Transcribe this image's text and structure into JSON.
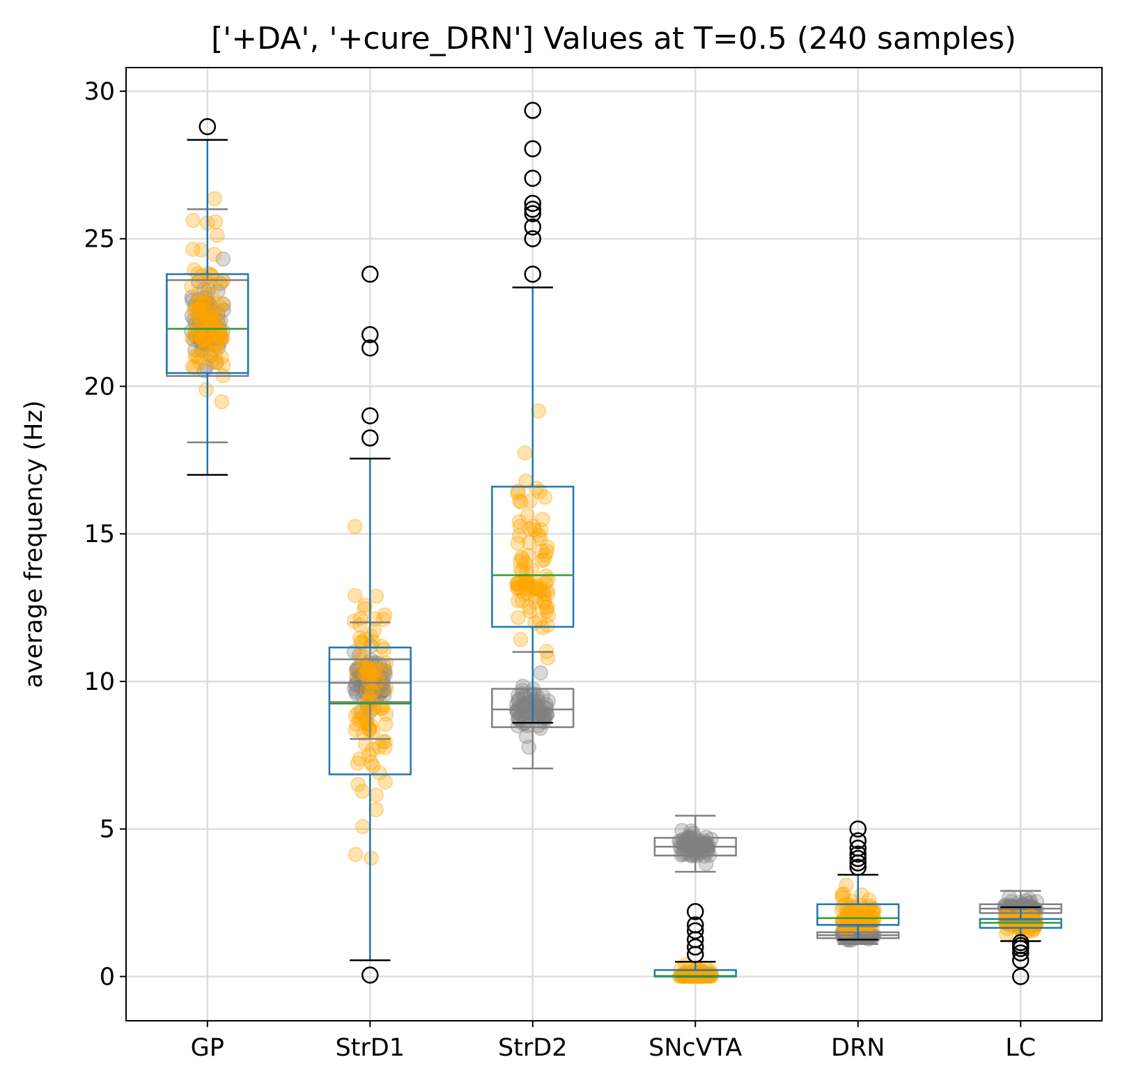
{
  "chart_data": {
    "type": "box",
    "title": "['+DA', '+cure_DRN'] Values at T=0.5 (240 samples)",
    "xlabel": "",
    "ylabel": "average frequency (Hz)",
    "ylim": [
      -1.5,
      30.8
    ],
    "yticks": [
      0,
      5,
      10,
      15,
      20,
      25,
      30
    ],
    "categories": [
      "GP",
      "StrD1",
      "StrD2",
      "SNcVTA",
      "DRN",
      "LC"
    ],
    "grid": true,
    "colors": {
      "box": "#1f77b4",
      "median": "#2ca02c",
      "whisker_cap": "#000000",
      "reference_box": "#808080",
      "points": "#ffa500",
      "reference_points": "#808080",
      "gridline": "#dddddd"
    },
    "series": [
      {
        "boxes": [
          {
            "category": "GP",
            "whislo": 17.0,
            "q1": 20.45,
            "median": 21.95,
            "q3": 23.8,
            "whishi": 28.35,
            "fliers": [
              28.8
            ],
            "points_range": [
              17.0,
              28.8
            ]
          },
          {
            "category": "StrD1",
            "whislo": 0.55,
            "q1": 6.85,
            "median": 9.25,
            "q3": 11.15,
            "whishi": 17.55,
            "fliers": [
              0.05,
              18.25,
              19.0,
              21.3,
              21.75,
              23.8
            ],
            "points_range": [
              0.0,
              17.5
            ]
          },
          {
            "category": "StrD2",
            "whislo": 8.6,
            "q1": 11.85,
            "median": 13.6,
            "q3": 16.6,
            "whishi": 23.35,
            "fliers": [
              23.8,
              25.0,
              25.4,
              25.85,
              26.0,
              26.2,
              27.05,
              28.05,
              29.35
            ],
            "points_range": [
              8.6,
              23.4
            ]
          },
          {
            "category": "SNcVTA",
            "whislo": 0.0,
            "q1": 0.0,
            "median": 0.02,
            "q3": 0.22,
            "whishi": 0.5,
            "fliers": [
              0.75,
              1.0,
              1.25,
              1.55,
              1.75,
              2.2
            ],
            "points_range": [
              0.0,
              0.5
            ]
          },
          {
            "category": "DRN",
            "whislo": 1.25,
            "q1": 1.75,
            "median": 1.98,
            "q3": 2.45,
            "whishi": 3.45,
            "fliers": [
              3.7,
              3.85,
              4.0,
              4.15,
              4.35,
              4.6,
              5.0
            ],
            "points_range": [
              1.2,
              3.45
            ]
          },
          {
            "category": "LC",
            "whislo": 1.2,
            "q1": 1.65,
            "median": 1.82,
            "q3": 1.95,
            "whishi": 2.35,
            "fliers": [
              0.0,
              0.55,
              0.8,
              0.95,
              1.05,
              1.15
            ],
            "points_range": [
              1.2,
              2.35
            ]
          }
        ]
      },
      {
        "boxes": [
          {
            "category": "GP",
            "whislo": 18.1,
            "q1": 20.35,
            "median": 21.95,
            "q3": 23.6,
            "whishi": 26.0,
            "points_range": [
              18.1,
              26.0
            ]
          },
          {
            "category": "StrD1",
            "whislo": 8.05,
            "q1": 9.3,
            "median": 9.95,
            "q3": 10.75,
            "whishi": 12.0,
            "points_range": [
              8.0,
              12.0
            ]
          },
          {
            "category": "StrD2",
            "whislo": 7.05,
            "q1": 8.45,
            "median": 9.05,
            "q3": 9.75,
            "whishi": 11.0,
            "points_range": [
              7.0,
              11.0
            ]
          },
          {
            "category": "SNcVTA",
            "whislo": 3.55,
            "q1": 4.1,
            "median": 4.4,
            "q3": 4.7,
            "whishi": 5.45,
            "points_range": [
              3.55,
              5.45
            ]
          },
          {
            "category": "DRN",
            "whislo": 1.1,
            "q1": 1.3,
            "median": 1.4,
            "q3": 1.5,
            "whishi": 1.7,
            "points_range": [
              1.0,
              1.8
            ]
          },
          {
            "category": "LC",
            "whislo": 1.9,
            "q1": 2.15,
            "median": 2.3,
            "q3": 2.45,
            "whishi": 2.9,
            "points_range": [
              1.9,
              2.95
            ]
          }
        ]
      }
    ]
  }
}
